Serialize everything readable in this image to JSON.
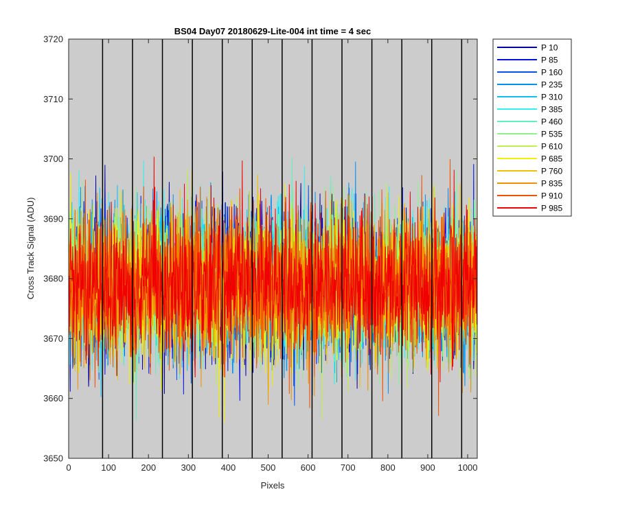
{
  "chart_data": {
    "type": "line",
    "title": "BS04 Day07 20180629-Lite-004 int time = 4 sec",
    "xlabel": "Pixels",
    "ylabel": "Cross Track Signal (ADU)",
    "xlim": [
      0,
      1024
    ],
    "ylim": [
      3650,
      3720
    ],
    "xticks": [
      0,
      100,
      200,
      300,
      400,
      500,
      600,
      700,
      800,
      900,
      1000
    ],
    "yticks": [
      3650,
      3660,
      3670,
      3680,
      3690,
      3700,
      3710,
      3720
    ],
    "vertical_lines_x": [
      85,
      160,
      235,
      310,
      385,
      460,
      535,
      610,
      685,
      760,
      835,
      910,
      985
    ],
    "background_color": "#cccccc",
    "legend_position": "outside-top-right",
    "mean_signal": 3679,
    "noise_sigma": 6,
    "series": [
      {
        "name": "P 10",
        "color": "#0000a8"
      },
      {
        "name": "P 85",
        "color": "#0010e0"
      },
      {
        "name": "P 160",
        "color": "#0050f0"
      },
      {
        "name": "P 235",
        "color": "#0090f0"
      },
      {
        "name": "P 310",
        "color": "#10c0f0"
      },
      {
        "name": "P 385",
        "color": "#30f0f0"
      },
      {
        "name": "P 460",
        "color": "#60f0c0"
      },
      {
        "name": "P 535",
        "color": "#90f090"
      },
      {
        "name": "P 610",
        "color": "#c0f050"
      },
      {
        "name": "P 685",
        "color": "#f0f000"
      },
      {
        "name": "P 760",
        "color": "#f0c000"
      },
      {
        "name": "P 835",
        "color": "#f09000"
      },
      {
        "name": "P 910",
        "color": "#f05000"
      },
      {
        "name": "P 985",
        "color": "#f00000"
      }
    ]
  }
}
